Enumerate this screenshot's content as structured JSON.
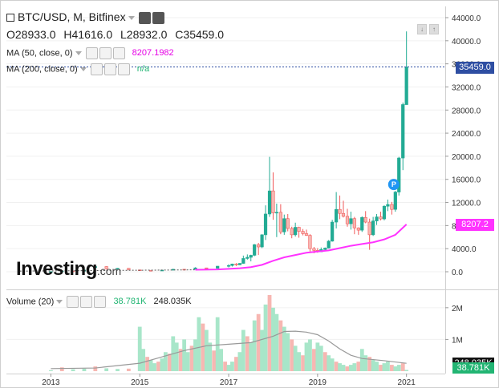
{
  "header": {
    "symbol_title": "BTC/USD, M, Bitfinex",
    "ohlc": {
      "open": "O28933.0",
      "high": "H41616.0",
      "low": "L28932.0",
      "close": "C35459.0"
    },
    "ma50": {
      "label": "MA (50, close, 0)",
      "value": "8207.1982"
    },
    "ma200": {
      "label": "MA (200, close, 0)",
      "value": "n/a"
    }
  },
  "volume_header": {
    "label": "Volume (20)",
    "value1": "38.781K",
    "value2": "248.035K"
  },
  "logo": {
    "text": "Investing",
    "suffix": ".com"
  },
  "colors": {
    "up": "#22ab94",
    "up_fill": "#a8e6c9",
    "down": "#f15a5a",
    "down_fill": "#f7b7b2",
    "ma50": "#ff33ff",
    "vol_ma": "#999999",
    "price_line": "#2e4ea2"
  },
  "price_axis": {
    "ticks": [
      "44000.0",
      "40000.0",
      "36000.0",
      "32000.0",
      "28000.0",
      "24000.0",
      "20000.0",
      "16000.0",
      "12000.0",
      "8000.0",
      "4000.0",
      "0.0"
    ]
  },
  "volume_axis": {
    "ticks": [
      "2M",
      "1M"
    ]
  },
  "markers": {
    "current_price": "35459.0",
    "ma_value": "8207.2",
    "vol_ma_value": "248.035K",
    "vol_value": "38.781K",
    "event_badge": "P"
  },
  "time_axis": {
    "labels": [
      "2013",
      "2015",
      "2017",
      "2019",
      "2021"
    ]
  },
  "chart_data": {
    "type": "candlestick",
    "title": "BTC/USD, M, Bitfinex",
    "y_range": [
      0,
      44000
    ],
    "volume_range": [
      0,
      2400000
    ],
    "time_range": [
      2012.0,
      2021.8
    ],
    "candles": [
      {
        "t": 2013.0,
        "o": 15,
        "h": 30,
        "l": 10,
        "c": 20
      },
      {
        "t": 2013.25,
        "o": 20,
        "h": 260,
        "l": 60,
        "c": 140
      },
      {
        "t": 2013.5,
        "o": 140,
        "h": 160,
        "l": 60,
        "c": 100
      },
      {
        "t": 2013.75,
        "o": 100,
        "h": 400,
        "l": 90,
        "c": 300
      },
      {
        "t": 2014.0,
        "o": 750,
        "h": 1150,
        "l": 400,
        "c": 900
      },
      {
        "t": 2014.25,
        "o": 900,
        "h": 950,
        "l": 400,
        "c": 500
      },
      {
        "t": 2014.5,
        "o": 500,
        "h": 650,
        "l": 450,
        "c": 600
      },
      {
        "t": 2014.75,
        "o": 600,
        "h": 650,
        "l": 300,
        "c": 350
      },
      {
        "t": 2015.0,
        "o": 320,
        "h": 330,
        "l": 170,
        "c": 250
      },
      {
        "t": 2015.25,
        "o": 250,
        "h": 260,
        "l": 200,
        "c": 230
      },
      {
        "t": 2015.5,
        "o": 230,
        "h": 310,
        "l": 220,
        "c": 280
      },
      {
        "t": 2015.75,
        "o": 280,
        "h": 500,
        "l": 230,
        "c": 430
      },
      {
        "t": 2016.0,
        "o": 430,
        "h": 460,
        "l": 360,
        "c": 420
      },
      {
        "t": 2016.25,
        "o": 420,
        "h": 780,
        "l": 400,
        "c": 670
      },
      {
        "t": 2016.5,
        "o": 670,
        "h": 700,
        "l": 480,
        "c": 610
      },
      {
        "t": 2016.75,
        "o": 610,
        "h": 980,
        "l": 600,
        "c": 970
      },
      {
        "t": 2017.0,
        "o": 970,
        "h": 1300,
        "l": 750,
        "c": 1080
      },
      {
        "t": 2017.08,
        "o": 1080,
        "h": 1400,
        "l": 900,
        "c": 1350
      },
      {
        "t": 2017.17,
        "o": 1350,
        "h": 1500,
        "l": 1000,
        "c": 1200
      },
      {
        "t": 2017.25,
        "o": 1200,
        "h": 1500,
        "l": 1150,
        "c": 1450
      },
      {
        "t": 2017.33,
        "o": 1450,
        "h": 2800,
        "l": 1400,
        "c": 2300
      },
      {
        "t": 2017.42,
        "o": 2300,
        "h": 3000,
        "l": 2100,
        "c": 2500
      },
      {
        "t": 2017.5,
        "o": 2500,
        "h": 2950,
        "l": 1800,
        "c": 2850
      },
      {
        "t": 2017.58,
        "o": 2850,
        "h": 4800,
        "l": 2700,
        "c": 4700
      },
      {
        "t": 2017.67,
        "o": 4700,
        "h": 5000,
        "l": 2900,
        "c": 4300
      },
      {
        "t": 2017.75,
        "o": 4300,
        "h": 6500,
        "l": 4100,
        "c": 6400
      },
      {
        "t": 2017.83,
        "o": 6400,
        "h": 11500,
        "l": 5500,
        "c": 10000
      },
      {
        "t": 2017.92,
        "o": 10000,
        "h": 19900,
        "l": 9500,
        "c": 14000
      },
      {
        "t": 2018.0,
        "o": 14000,
        "h": 17200,
        "l": 9000,
        "c": 10200
      },
      {
        "t": 2018.08,
        "o": 10200,
        "h": 11800,
        "l": 6000,
        "c": 10300
      },
      {
        "t": 2018.17,
        "o": 10300,
        "h": 11700,
        "l": 6500,
        "c": 6900
      },
      {
        "t": 2018.25,
        "o": 6900,
        "h": 9900,
        "l": 6400,
        "c": 9200
      },
      {
        "t": 2018.33,
        "o": 9200,
        "h": 10000,
        "l": 7000,
        "c": 7500
      },
      {
        "t": 2018.42,
        "o": 7500,
        "h": 7800,
        "l": 5800,
        "c": 6400
      },
      {
        "t": 2018.5,
        "o": 6400,
        "h": 8500,
        "l": 6100,
        "c": 7700
      },
      {
        "t": 2018.58,
        "o": 7700,
        "h": 7800,
        "l": 5900,
        "c": 7000
      },
      {
        "t": 2018.67,
        "o": 7000,
        "h": 7400,
        "l": 6300,
        "c": 6600
      },
      {
        "t": 2018.75,
        "o": 6600,
        "h": 7300,
        "l": 6200,
        "c": 6300
      },
      {
        "t": 2018.83,
        "o": 6300,
        "h": 6500,
        "l": 3500,
        "c": 4000
      },
      {
        "t": 2018.92,
        "o": 4000,
        "h": 4300,
        "l": 3200,
        "c": 3700
      },
      {
        "t": 2019.0,
        "o": 3700,
        "h": 4100,
        "l": 3300,
        "c": 3450
      },
      {
        "t": 2019.08,
        "o": 3450,
        "h": 4200,
        "l": 3400,
        "c": 3850
      },
      {
        "t": 2019.17,
        "o": 3850,
        "h": 4200,
        "l": 3700,
        "c": 4100
      },
      {
        "t": 2019.25,
        "o": 4100,
        "h": 5500,
        "l": 4050,
        "c": 5300
      },
      {
        "t": 2019.33,
        "o": 5300,
        "h": 9000,
        "l": 5200,
        "c": 8600
      },
      {
        "t": 2019.42,
        "o": 8600,
        "h": 13800,
        "l": 7500,
        "c": 10800
      },
      {
        "t": 2019.5,
        "o": 10800,
        "h": 13200,
        "l": 9100,
        "c": 10100
      },
      {
        "t": 2019.58,
        "o": 10100,
        "h": 12300,
        "l": 9400,
        "c": 9600
      },
      {
        "t": 2019.67,
        "o": 9600,
        "h": 10900,
        "l": 7800,
        "c": 8300
      },
      {
        "t": 2019.75,
        "o": 8300,
        "h": 10400,
        "l": 7300,
        "c": 9200
      },
      {
        "t": 2019.83,
        "o": 9200,
        "h": 9500,
        "l": 6500,
        "c": 7600
      },
      {
        "t": 2019.92,
        "o": 7600,
        "h": 7700,
        "l": 6400,
        "c": 7200
      },
      {
        "t": 2020.0,
        "o": 7200,
        "h": 9600,
        "l": 6900,
        "c": 9400
      },
      {
        "t": 2020.08,
        "o": 9400,
        "h": 10500,
        "l": 8400,
        "c": 8600
      },
      {
        "t": 2020.17,
        "o": 8600,
        "h": 9200,
        "l": 3800,
        "c": 6400
      },
      {
        "t": 2020.25,
        "o": 6400,
        "h": 9500,
        "l": 6200,
        "c": 8800
      },
      {
        "t": 2020.33,
        "o": 8800,
        "h": 10000,
        "l": 8100,
        "c": 9500
      },
      {
        "t": 2020.42,
        "o": 9500,
        "h": 10400,
        "l": 8900,
        "c": 9150
      },
      {
        "t": 2020.5,
        "o": 9150,
        "h": 11500,
        "l": 8900,
        "c": 11350
      },
      {
        "t": 2020.58,
        "o": 11350,
        "h": 12500,
        "l": 10500,
        "c": 11650
      },
      {
        "t": 2020.67,
        "o": 11650,
        "h": 12100,
        "l": 9900,
        "c": 10800
      },
      {
        "t": 2020.75,
        "o": 10800,
        "h": 14000,
        "l": 10400,
        "c": 13800
      },
      {
        "t": 2020.83,
        "o": 13800,
        "h": 19900,
        "l": 13200,
        "c": 19700
      },
      {
        "t": 2020.92,
        "o": 19700,
        "h": 29300,
        "l": 17600,
        "c": 28950
      },
      {
        "t": 2021.0,
        "o": 28933,
        "h": 41616,
        "l": 28932,
        "c": 35459
      }
    ],
    "volumes": [
      {
        "t": 2013.0,
        "v": 30000
      },
      {
        "t": 2013.25,
        "v": 120000
      },
      {
        "t": 2013.5,
        "v": 60000
      },
      {
        "t": 2013.75,
        "v": 80000
      },
      {
        "t": 2014.0,
        "v": 150000
      },
      {
        "t": 2014.25,
        "v": 90000
      },
      {
        "t": 2014.5,
        "v": 70000
      },
      {
        "t": 2014.75,
        "v": 80000
      },
      {
        "t": 2015.0,
        "v": 1400000
      },
      {
        "t": 2015.08,
        "v": 700000
      },
      {
        "t": 2015.17,
        "v": 450000
      },
      {
        "t": 2015.25,
        "v": 350000
      },
      {
        "t": 2015.33,
        "v": 250000
      },
      {
        "t": 2015.42,
        "v": 300000
      },
      {
        "t": 2015.5,
        "v": 400000
      },
      {
        "t": 2015.58,
        "v": 600000
      },
      {
        "t": 2015.67,
        "v": 550000
      },
      {
        "t": 2015.75,
        "v": 1100000
      },
      {
        "t": 2015.83,
        "v": 900000
      },
      {
        "t": 2015.92,
        "v": 700000
      },
      {
        "t": 2016.0,
        "v": 1000000
      },
      {
        "t": 2016.08,
        "v": 600000
      },
      {
        "t": 2016.17,
        "v": 800000
      },
      {
        "t": 2016.25,
        "v": 1000000
      },
      {
        "t": 2016.33,
        "v": 1700000
      },
      {
        "t": 2016.42,
        "v": 1500000
      },
      {
        "t": 2016.5,
        "v": 1300000
      },
      {
        "t": 2016.58,
        "v": 900000
      },
      {
        "t": 2016.67,
        "v": 650000
      },
      {
        "t": 2016.75,
        "v": 1700000
      },
      {
        "t": 2016.83,
        "v": 700000
      },
      {
        "t": 2016.92,
        "v": 300000
      },
      {
        "t": 2017.0,
        "v": 200000
      },
      {
        "t": 2017.08,
        "v": 300000
      },
      {
        "t": 2017.17,
        "v": 450000
      },
      {
        "t": 2017.25,
        "v": 600000
      },
      {
        "t": 2017.33,
        "v": 1300000
      },
      {
        "t": 2017.42,
        "v": 1100000
      },
      {
        "t": 2017.5,
        "v": 900000
      },
      {
        "t": 2017.58,
        "v": 1600000
      },
      {
        "t": 2017.67,
        "v": 1800000
      },
      {
        "t": 2017.75,
        "v": 1300000
      },
      {
        "t": 2017.83,
        "v": 2100000
      },
      {
        "t": 2017.92,
        "v": 2400000
      },
      {
        "t": 2018.0,
        "v": 2000000
      },
      {
        "t": 2018.08,
        "v": 1800000
      },
      {
        "t": 2018.17,
        "v": 1600000
      },
      {
        "t": 2018.25,
        "v": 1400000
      },
      {
        "t": 2018.33,
        "v": 1200000
      },
      {
        "t": 2018.42,
        "v": 1000000
      },
      {
        "t": 2018.5,
        "v": 800000
      },
      {
        "t": 2018.58,
        "v": 600000
      },
      {
        "t": 2018.67,
        "v": 500000
      },
      {
        "t": 2018.75,
        "v": 900000
      },
      {
        "t": 2018.83,
        "v": 1000000
      },
      {
        "t": 2018.92,
        "v": 700000
      },
      {
        "t": 2019.0,
        "v": 900000
      },
      {
        "t": 2019.08,
        "v": 800000
      },
      {
        "t": 2019.17,
        "v": 600000
      },
      {
        "t": 2019.25,
        "v": 500000
      },
      {
        "t": 2019.33,
        "v": 400000
      },
      {
        "t": 2019.42,
        "v": 300000
      },
      {
        "t": 2019.5,
        "v": 250000
      },
      {
        "t": 2019.58,
        "v": 200000
      },
      {
        "t": 2019.67,
        "v": 150000
      },
      {
        "t": 2019.75,
        "v": 200000
      },
      {
        "t": 2019.83,
        "v": 250000
      },
      {
        "t": 2019.92,
        "v": 300000
      },
      {
        "t": 2020.0,
        "v": 700000
      },
      {
        "t": 2020.08,
        "v": 500000
      },
      {
        "t": 2020.17,
        "v": 450000
      },
      {
        "t": 2020.25,
        "v": 350000
      },
      {
        "t": 2020.33,
        "v": 300000
      },
      {
        "t": 2020.42,
        "v": 200000
      },
      {
        "t": 2020.5,
        "v": 250000
      },
      {
        "t": 2020.58,
        "v": 300000
      },
      {
        "t": 2020.67,
        "v": 200000
      },
      {
        "t": 2020.75,
        "v": 150000
      },
      {
        "t": 2020.83,
        "v": 200000
      },
      {
        "t": 2020.92,
        "v": 250000
      },
      {
        "t": 2021.0,
        "v": 38781
      }
    ],
    "ma50": [
      {
        "t": 2016.25,
        "y": 350
      },
      {
        "t": 2016.75,
        "y": 400
      },
      {
        "t": 2017.0,
        "y": 500
      },
      {
        "t": 2017.25,
        "y": 600
      },
      {
        "t": 2017.5,
        "y": 800
      },
      {
        "t": 2017.75,
        "y": 1200
      },
      {
        "t": 2018.0,
        "y": 1900
      },
      {
        "t": 2018.25,
        "y": 2500
      },
      {
        "t": 2018.5,
        "y": 2900
      },
      {
        "t": 2018.75,
        "y": 3300
      },
      {
        "t": 2019.0,
        "y": 3500
      },
      {
        "t": 2019.25,
        "y": 3700
      },
      {
        "t": 2019.5,
        "y": 4100
      },
      {
        "t": 2019.75,
        "y": 4500
      },
      {
        "t": 2020.0,
        "y": 4800
      },
      {
        "t": 2020.25,
        "y": 5100
      },
      {
        "t": 2020.5,
        "y": 5600
      },
      {
        "t": 2020.75,
        "y": 6400
      },
      {
        "t": 2021.0,
        "y": 8207
      }
    ],
    "volume_ma": [
      {
        "t": 2013.0,
        "v": 80000
      },
      {
        "t": 2014.0,
        "v": 100000
      },
      {
        "t": 2015.0,
        "v": 250000
      },
      {
        "t": 2015.5,
        "v": 450000
      },
      {
        "t": 2016.0,
        "v": 650000
      },
      {
        "t": 2016.5,
        "v": 800000
      },
      {
        "t": 2017.0,
        "v": 850000
      },
      {
        "t": 2017.5,
        "v": 900000
      },
      {
        "t": 2018.0,
        "v": 1100000
      },
      {
        "t": 2018.25,
        "v": 1250000
      },
      {
        "t": 2018.5,
        "v": 1260000
      },
      {
        "t": 2018.75,
        "v": 1230000
      },
      {
        "t": 2019.0,
        "v": 1150000
      },
      {
        "t": 2019.25,
        "v": 950000
      },
      {
        "t": 2019.5,
        "v": 700000
      },
      {
        "t": 2019.75,
        "v": 500000
      },
      {
        "t": 2020.0,
        "v": 400000
      },
      {
        "t": 2020.5,
        "v": 330000
      },
      {
        "t": 2021.0,
        "v": 248035
      }
    ],
    "current_price": 35459.0,
    "ma50_last": 8207.2,
    "volume_last": 38781,
    "volume_ma_last": 248035
  }
}
